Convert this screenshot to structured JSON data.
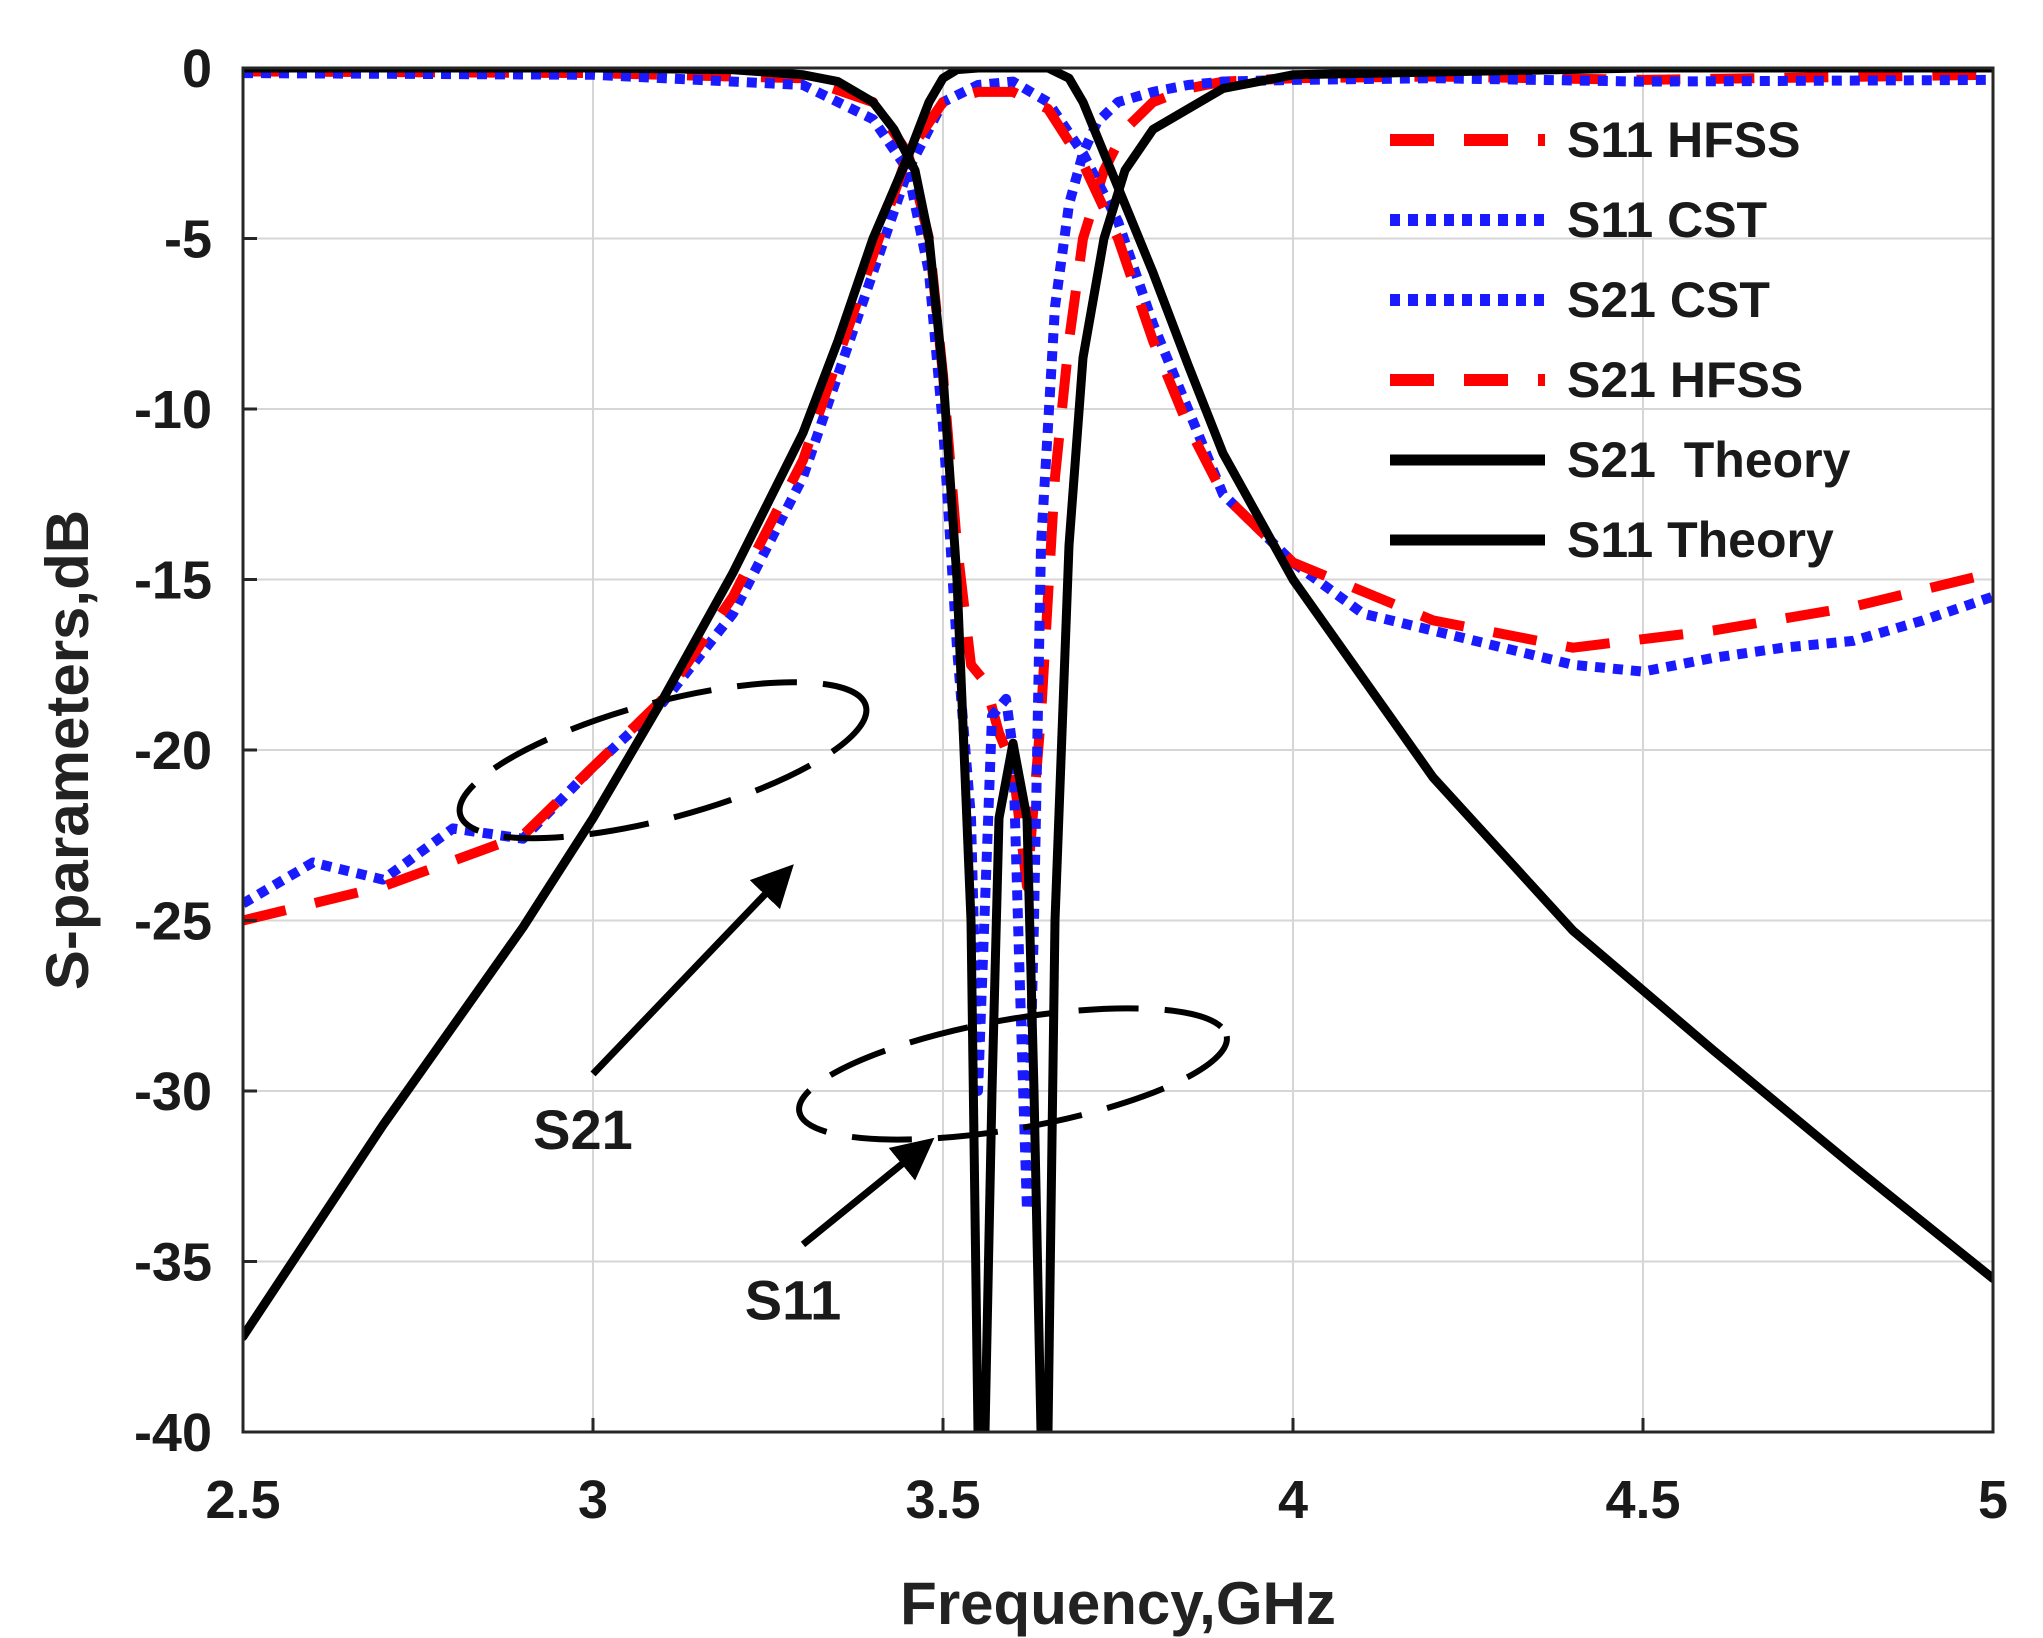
{
  "chart_data": {
    "type": "line",
    "xlabel": "Frequency,GHz",
    "ylabel": "S-parameters,dB",
    "xlim": [
      2.5,
      5
    ],
    "ylim": [
      -40,
      0
    ],
    "grid": true,
    "x_ticks": [
      2.5,
      3,
      3.5,
      4,
      4.5,
      5
    ],
    "x_tick_labels": [
      "2.5",
      "3",
      "3.5",
      "4",
      "4.5",
      "5"
    ],
    "y_ticks": [
      0,
      -5,
      -10,
      -15,
      -20,
      -25,
      -30,
      -35,
      -40
    ],
    "y_tick_labels": [
      "0",
      "-5",
      "-10",
      "-15",
      "-20",
      "-25",
      "-30",
      "-35",
      "-40"
    ],
    "legend_position": "top-right",
    "series": [
      {
        "name": "S11 HFSS",
        "color": "#ff0000",
        "style": "dashed",
        "x": [
          2.5,
          3.0,
          3.3,
          3.4,
          3.45,
          3.48,
          3.5,
          3.52,
          3.54,
          3.56,
          3.58,
          3.6,
          3.62,
          3.64,
          3.66,
          3.68,
          3.7,
          3.73,
          3.76,
          3.8,
          3.85,
          3.9,
          4.0,
          4.2,
          4.5,
          5.0
        ],
        "y": [
          -0.1,
          -0.15,
          -0.3,
          -1.0,
          -2.5,
          -5.0,
          -9.0,
          -14.0,
          -17.5,
          -18.0,
          -19.5,
          -20.5,
          -24.0,
          -19.0,
          -12.0,
          -8.0,
          -5.0,
          -3.0,
          -1.8,
          -1.0,
          -0.6,
          -0.4,
          -0.3,
          -0.25,
          -0.35,
          -0.2
        ]
      },
      {
        "name": "S11 CST",
        "color": "#1a1aff",
        "style": "dotted",
        "x": [
          2.5,
          3.0,
          3.3,
          3.4,
          3.45,
          3.48,
          3.5,
          3.52,
          3.54,
          3.55,
          3.57,
          3.59,
          3.6,
          3.61,
          3.62,
          3.63,
          3.64,
          3.66,
          3.68,
          3.7,
          3.72,
          3.75,
          3.8,
          3.85,
          3.9,
          4.0,
          4.2,
          4.5,
          5.0
        ],
        "y": [
          -0.15,
          -0.2,
          -0.5,
          -1.5,
          -3.0,
          -6.0,
          -10.5,
          -17.0,
          -22.0,
          -30.0,
          -19.0,
          -18.5,
          -20.0,
          -27.0,
          -33.5,
          -25.0,
          -14.0,
          -7.0,
          -4.0,
          -2.5,
          -1.6,
          -1.0,
          -0.7,
          -0.5,
          -0.4,
          -0.35,
          -0.3,
          -0.4,
          -0.35
        ]
      },
      {
        "name": "S21 CST",
        "color": "#1a1aff",
        "style": "dotted",
        "x": [
          2.5,
          2.6,
          2.7,
          2.8,
          2.9,
          3.0,
          3.1,
          3.2,
          3.3,
          3.4,
          3.45,
          3.5,
          3.55,
          3.6,
          3.65,
          3.7,
          3.75,
          3.8,
          3.85,
          3.9,
          4.0,
          4.1,
          4.2,
          4.3,
          4.4,
          4.5,
          4.6,
          4.7,
          4.8,
          4.9,
          5.0
        ],
        "y": [
          -24.5,
          -23.3,
          -23.8,
          -22.3,
          -22.6,
          -20.5,
          -18.6,
          -16.0,
          -12.0,
          -6.0,
          -3.0,
          -1.0,
          -0.5,
          -0.4,
          -1.0,
          -2.5,
          -4.5,
          -7.5,
          -10.0,
          -12.5,
          -14.5,
          -16.0,
          -16.5,
          -17.0,
          -17.5,
          -17.7,
          -17.3,
          -17.0,
          -16.8,
          -16.2,
          -15.5
        ]
      },
      {
        "name": "S21 HFSS",
        "color": "#ff0000",
        "style": "dashed",
        "x": [
          2.5,
          2.7,
          2.9,
          3.0,
          3.1,
          3.2,
          3.3,
          3.4,
          3.45,
          3.5,
          3.55,
          3.6,
          3.65,
          3.7,
          3.75,
          3.8,
          3.85,
          3.9,
          4.0,
          4.2,
          4.4,
          4.6,
          4.8,
          5.0
        ],
        "y": [
          -25.0,
          -24.0,
          -22.5,
          -20.5,
          -18.5,
          -15.5,
          -11.5,
          -5.5,
          -2.5,
          -1.0,
          -0.7,
          -0.7,
          -1.2,
          -2.8,
          -5.0,
          -8.0,
          -10.5,
          -12.5,
          -14.5,
          -16.2,
          -17.0,
          -16.5,
          -15.8,
          -14.8
        ]
      },
      {
        "name": "S21  Theory",
        "color": "#000000",
        "style": "solid",
        "x": [
          2.5,
          2.7,
          2.9,
          3.0,
          3.1,
          3.2,
          3.3,
          3.35,
          3.4,
          3.45,
          3.48,
          3.5,
          3.52,
          3.55,
          3.6,
          3.65,
          3.68,
          3.7,
          3.72,
          3.75,
          3.8,
          3.85,
          3.9,
          4.0,
          4.2,
          4.4,
          4.6,
          4.8,
          5.0
        ],
        "y": [
          -37.2,
          -31.0,
          -25.2,
          -22.0,
          -18.5,
          -14.8,
          -10.7,
          -8.0,
          -5.0,
          -2.6,
          -1.0,
          -0.3,
          -0.05,
          0.0,
          0.0,
          0.0,
          -0.3,
          -1.0,
          -2.0,
          -3.5,
          -6.0,
          -8.7,
          -11.3,
          -15.0,
          -20.8,
          -25.3,
          -28.8,
          -32.2,
          -35.5
        ]
      },
      {
        "name": "S11 Theory",
        "color": "#000000",
        "style": "solid",
        "x": [
          2.5,
          2.8,
          3.0,
          3.2,
          3.3,
          3.35,
          3.4,
          3.43,
          3.46,
          3.48,
          3.5,
          3.52,
          3.54,
          3.55,
          3.56,
          3.57,
          3.58,
          3.6,
          3.62,
          3.63,
          3.64,
          3.645,
          3.65,
          3.66,
          3.68,
          3.7,
          3.73,
          3.76,
          3.8,
          3.9,
          4.0,
          4.5,
          5.0
        ],
        "y": [
          0.0,
          0.0,
          0.0,
          -0.05,
          -0.2,
          -0.4,
          -1.0,
          -1.8,
          -3.0,
          -5.0,
          -9.0,
          -15.0,
          -25.0,
          -40.0,
          -40.0,
          -30.0,
          -22.0,
          -19.8,
          -22.0,
          -30.0,
          -40.0,
          -40.0,
          -40.0,
          -25.0,
          -14.0,
          -8.5,
          -5.0,
          -3.0,
          -1.8,
          -0.6,
          -0.2,
          0.0,
          0.0
        ]
      }
    ],
    "annotations": [
      {
        "text": "S21",
        "arrow_from": [
          3.0,
          -29.5
        ],
        "arrow_to": [
          3.28,
          -23.5
        ]
      },
      {
        "text": "S11",
        "arrow_from": [
          3.3,
          -34.5
        ],
        "arrow_to": [
          3.48,
          -31.5
        ]
      }
    ],
    "ellipses": [
      {
        "label": "S21",
        "center": [
          3.1,
          -20.3
        ],
        "rx": 0.3,
        "ry": 1.7,
        "angle": -15
      },
      {
        "label": "S11",
        "center": [
          3.6,
          -29.5
        ],
        "rx": 0.31,
        "ry": 1.6,
        "angle": -10
      }
    ]
  }
}
